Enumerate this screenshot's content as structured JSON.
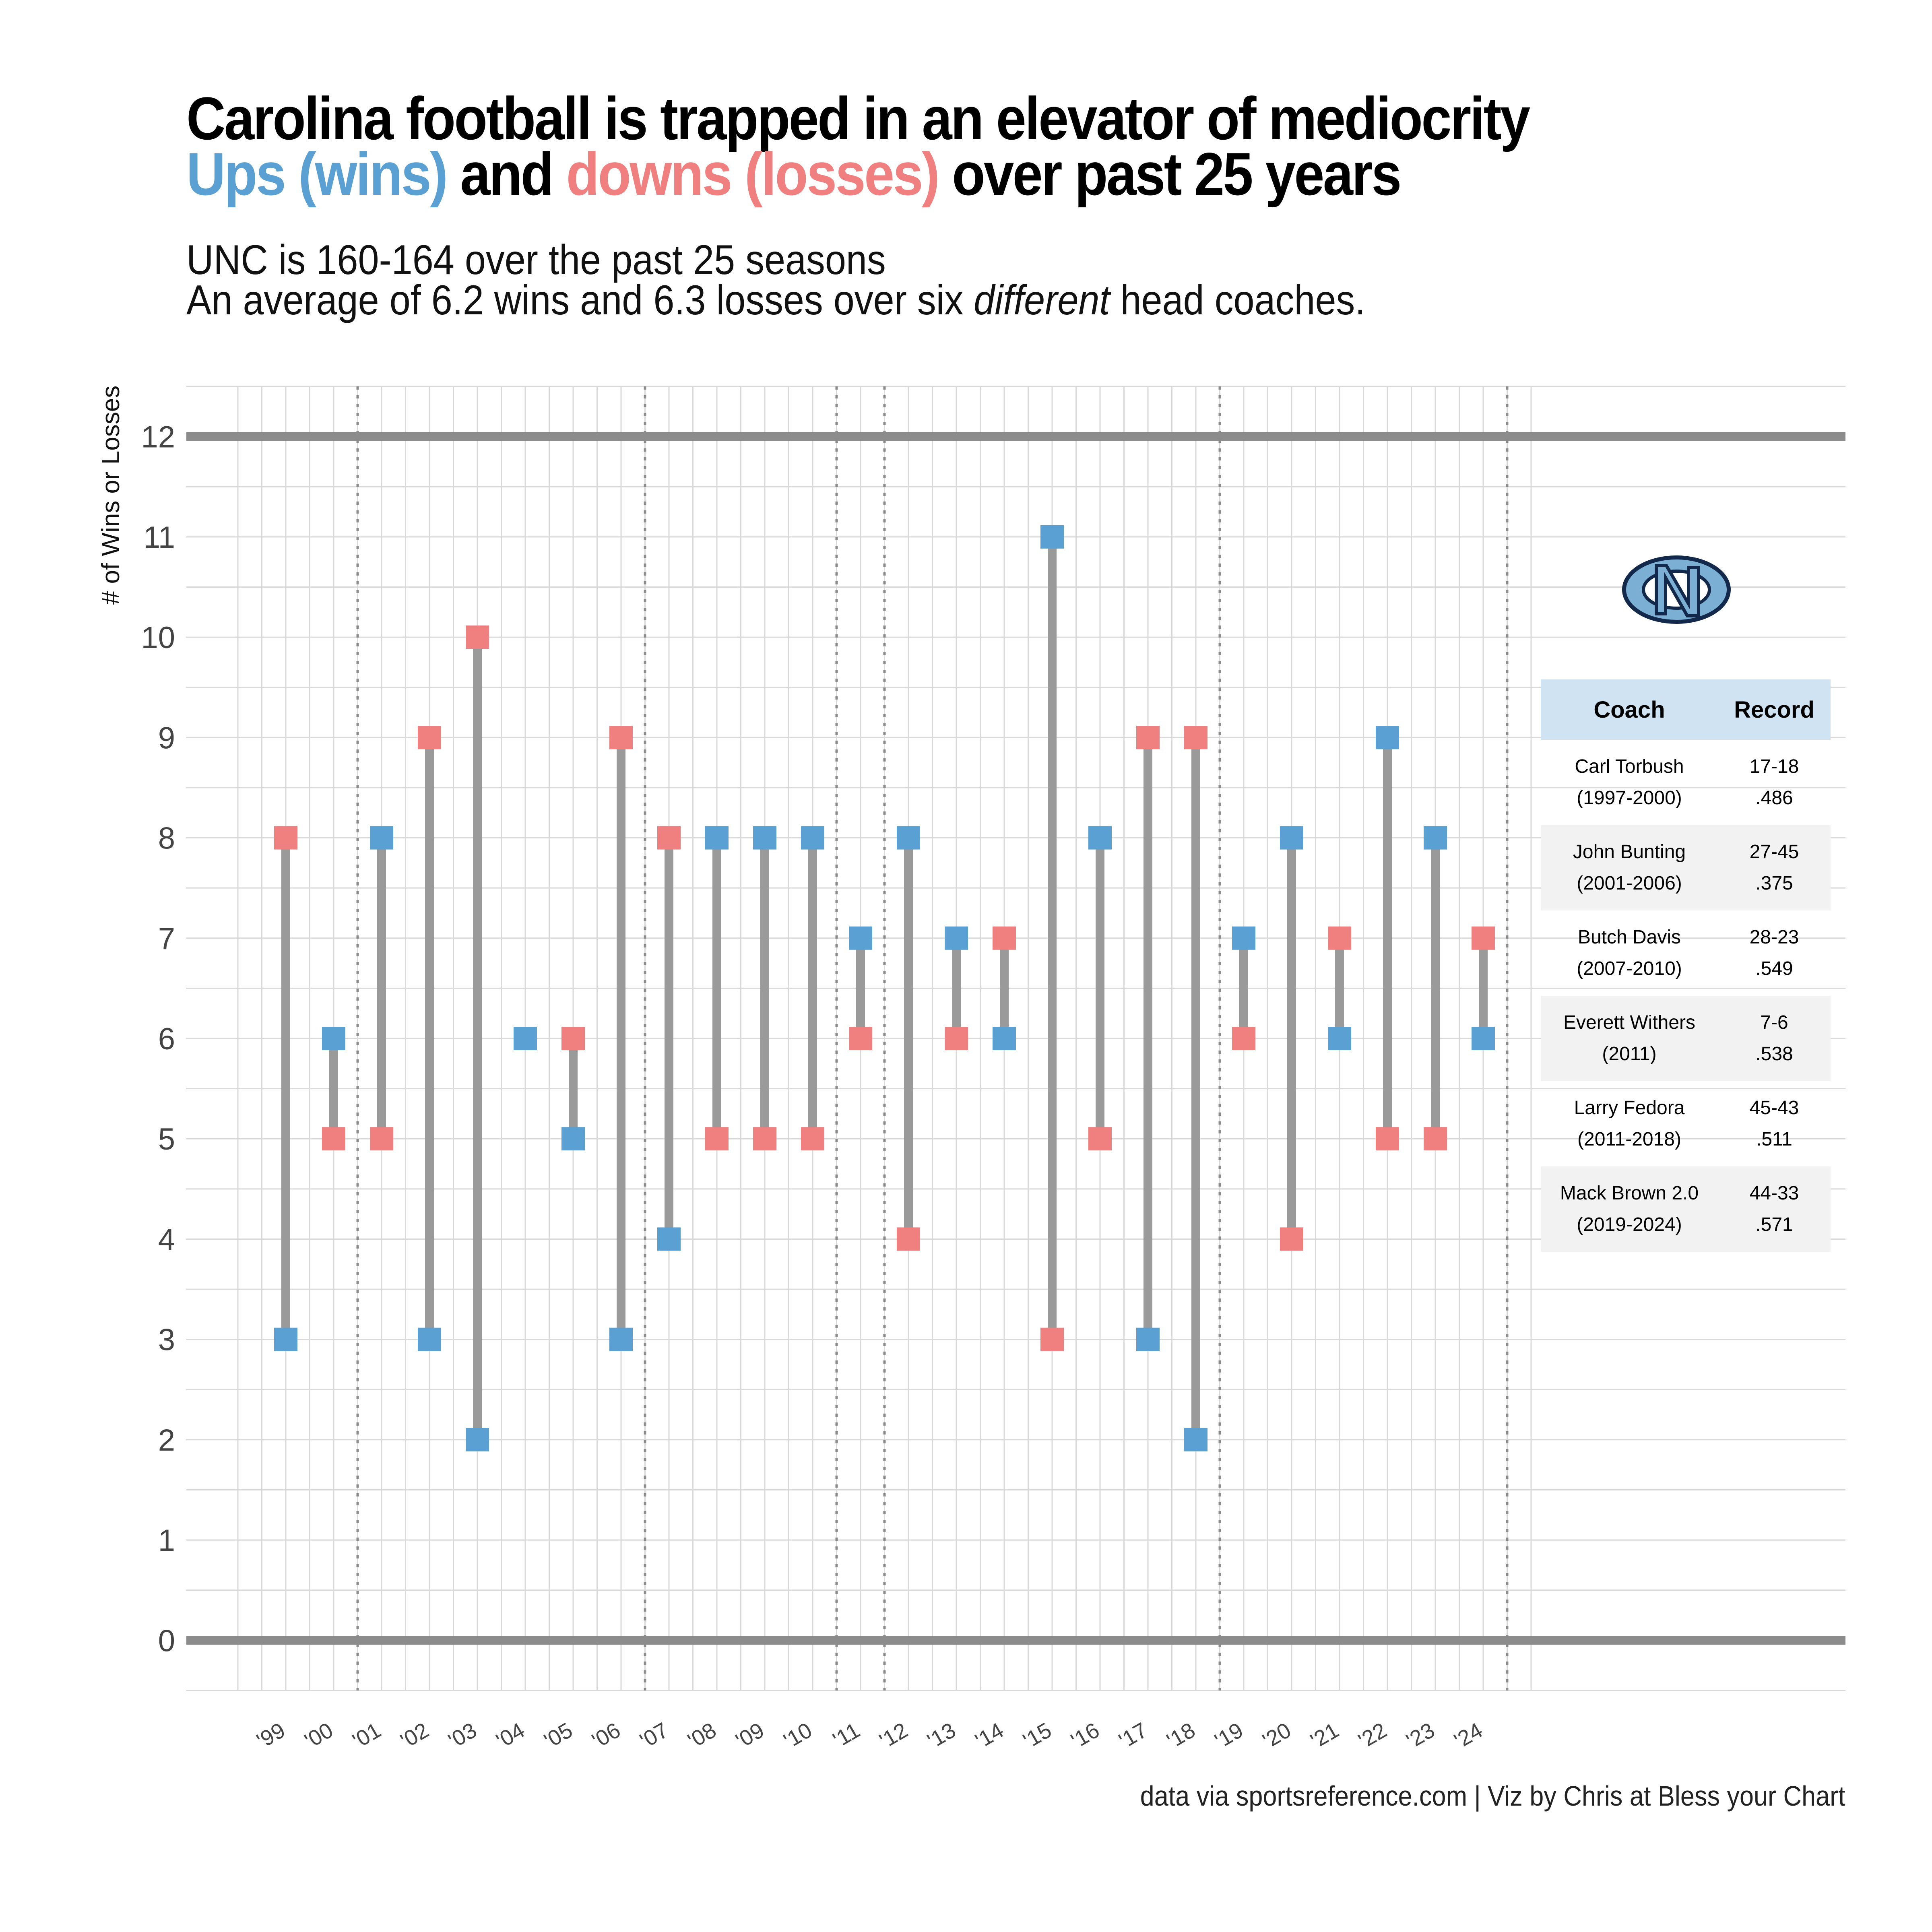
{
  "title": {
    "line1": "Carolina football is trapped in an elevator of mediocrity",
    "line2_wins": "Ups (wins)",
    "line2_and": " and ",
    "line2_losses": "downs (losses)",
    "line2_tail": " over past 25 years"
  },
  "subtitle": {
    "line1": "UNC is 160-164 over the past 25 seasons",
    "line2_pre": "An average of 6.2 wins and 6.3 losses over six ",
    "line2_em": "different",
    "line2_post": " head coaches."
  },
  "caption": "data via sportsreference.com | Viz by Chris at Bless your Chart",
  "colors": {
    "wins": "#5aa0d3",
    "losses": "#f07f80",
    "bar": "#9a9a9a",
    "grid": "#d9d9d9",
    "logo": "#7bafd4"
  },
  "logo": {
    "icon": "unc-interlocking-nc-logo",
    "text": "NC"
  },
  "chart_data": {
    "type": "dumbbell",
    "ylabel": "# of Wins or Losses",
    "ylim": [
      -0.5,
      12.5
    ],
    "yticks": [
      0,
      1,
      2,
      3,
      4,
      5,
      6,
      7,
      8,
      9,
      10,
      11,
      12
    ],
    "reference_lines": [
      0,
      12
    ],
    "categories": [
      "'99",
      "'00",
      "'01",
      "'02",
      "'03",
      "'04",
      "'05",
      "'06",
      "'07",
      "'08",
      "'09",
      "'10",
      "'11",
      "'12",
      "'13",
      "'14",
      "'15",
      "'16",
      "'17",
      "'18",
      "'19",
      "'20",
      "'21",
      "'22",
      "'23",
      "'24"
    ],
    "series": [
      {
        "name": "Wins",
        "values": [
          3,
          6,
          8,
          3,
          2,
          6,
          5,
          3,
          4,
          8,
          8,
          8,
          7,
          8,
          7,
          6,
          11,
          8,
          3,
          2,
          7,
          8,
          6,
          9,
          8,
          6
        ]
      },
      {
        "name": "Losses",
        "values": [
          8,
          5,
          5,
          9,
          10,
          6,
          6,
          9,
          8,
          5,
          5,
          5,
          6,
          4,
          6,
          7,
          3,
          5,
          9,
          9,
          6,
          4,
          7,
          5,
          5,
          7
        ]
      }
    ],
    "coach_change_after": [
      "'00",
      "'06",
      "'10",
      "'11",
      "'18",
      "'24"
    ]
  },
  "table": {
    "headers": [
      "Coach",
      "Record"
    ],
    "rows": [
      {
        "name": "Carl Torbush",
        "years": "(1997-2000)",
        "record": "17-18",
        "pct": ".486"
      },
      {
        "name": "John Bunting",
        "years": "(2001-2006)",
        "record": "27-45",
        "pct": ".375"
      },
      {
        "name": "Butch Davis",
        "years": "(2007-2010)",
        "record": "28-23",
        "pct": ".549"
      },
      {
        "name": "Everett Withers",
        "years": "(2011)",
        "record": "7-6",
        "pct": ".538"
      },
      {
        "name": "Larry Fedora",
        "years": "(2011-2018)",
        "record": "45-43",
        "pct": ".511"
      },
      {
        "name": "Mack Brown 2.0",
        "years": "(2019-2024)",
        "record": "44-33",
        "pct": ".571"
      }
    ]
  }
}
